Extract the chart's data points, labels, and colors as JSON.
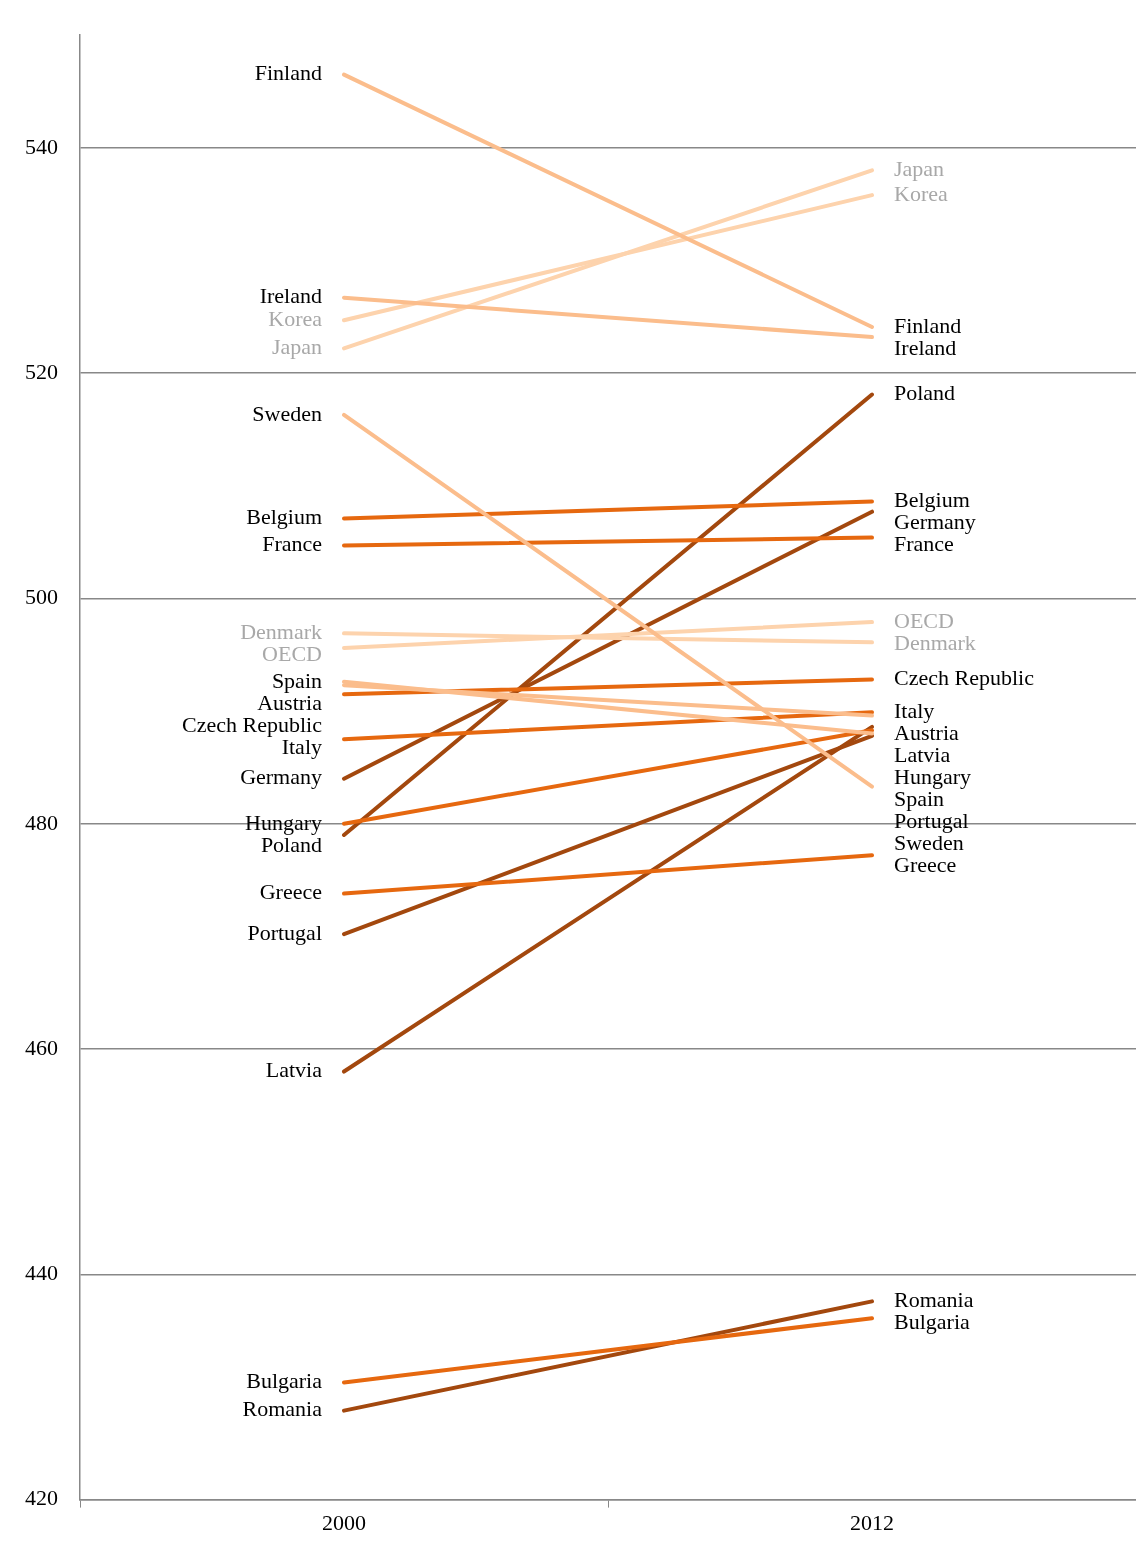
{
  "chart_data": {
    "type": "line",
    "categories": [
      "2000",
      "2012"
    ],
    "ylim": [
      420,
      550
    ],
    "yticks": [
      420,
      440,
      460,
      480,
      500,
      520,
      540
    ],
    "grid": "y",
    "legend": false,
    "marker": "none",
    "line_style": "solid",
    "series": [
      {
        "name": "Finland",
        "color": "#fbbd8c",
        "values": [
          546.5,
          524.1
        ]
      },
      {
        "name": "Ireland",
        "color": "#fbbd8c",
        "values": [
          526.7,
          523.2
        ]
      },
      {
        "name": "Korea",
        "color": "#fdd3ad",
        "values": [
          524.7,
          535.8
        ]
      },
      {
        "name": "Japan",
        "color": "#fdd3ad",
        "values": [
          522.2,
          538.0
        ]
      },
      {
        "name": "Sweden",
        "color": "#fbbd8c",
        "values": [
          516.3,
          483.3
        ]
      },
      {
        "name": "Belgium",
        "color": "#e6680f",
        "values": [
          507.1,
          508.6
        ]
      },
      {
        "name": "France",
        "color": "#e6680f",
        "values": [
          504.7,
          505.4
        ]
      },
      {
        "name": "Denmark",
        "color": "#fdd3ad",
        "values": [
          496.9,
          496.1
        ]
      },
      {
        "name": "OECD",
        "color": "#fdd3ad",
        "values": [
          495.6,
          497.9
        ]
      },
      {
        "name": "Spain",
        "color": "#fbbd8c",
        "values": [
          492.6,
          488.0
        ]
      },
      {
        "name": "Austria",
        "color": "#fbbd8c",
        "values": [
          492.3,
          489.6
        ]
      },
      {
        "name": "Czech Republic",
        "color": "#e6680f",
        "values": [
          491.5,
          492.8
        ]
      },
      {
        "name": "Italy",
        "color": "#e6680f",
        "values": [
          487.5,
          489.9
        ]
      },
      {
        "name": "Germany",
        "color": "#a3480e",
        "values": [
          484.0,
          507.7
        ]
      },
      {
        "name": "Hungary",
        "color": "#e6680f",
        "values": [
          480.0,
          488.3
        ]
      },
      {
        "name": "Poland",
        "color": "#a3480e",
        "values": [
          479.0,
          518.1
        ]
      },
      {
        "name": "Greece",
        "color": "#e6680f",
        "values": [
          473.8,
          477.2
        ]
      },
      {
        "name": "Portugal",
        "color": "#a3480e",
        "values": [
          470.2,
          487.8
        ]
      },
      {
        "name": "Latvia",
        "color": "#a3480e",
        "values": [
          458.0,
          488.6
        ]
      },
      {
        "name": "Bulgaria",
        "color": "#e6680f",
        "values": [
          430.4,
          436.1
        ]
      },
      {
        "name": "Romania",
        "color": "#a3480e",
        "values": [
          427.9,
          437.6
        ]
      }
    ]
  }
}
